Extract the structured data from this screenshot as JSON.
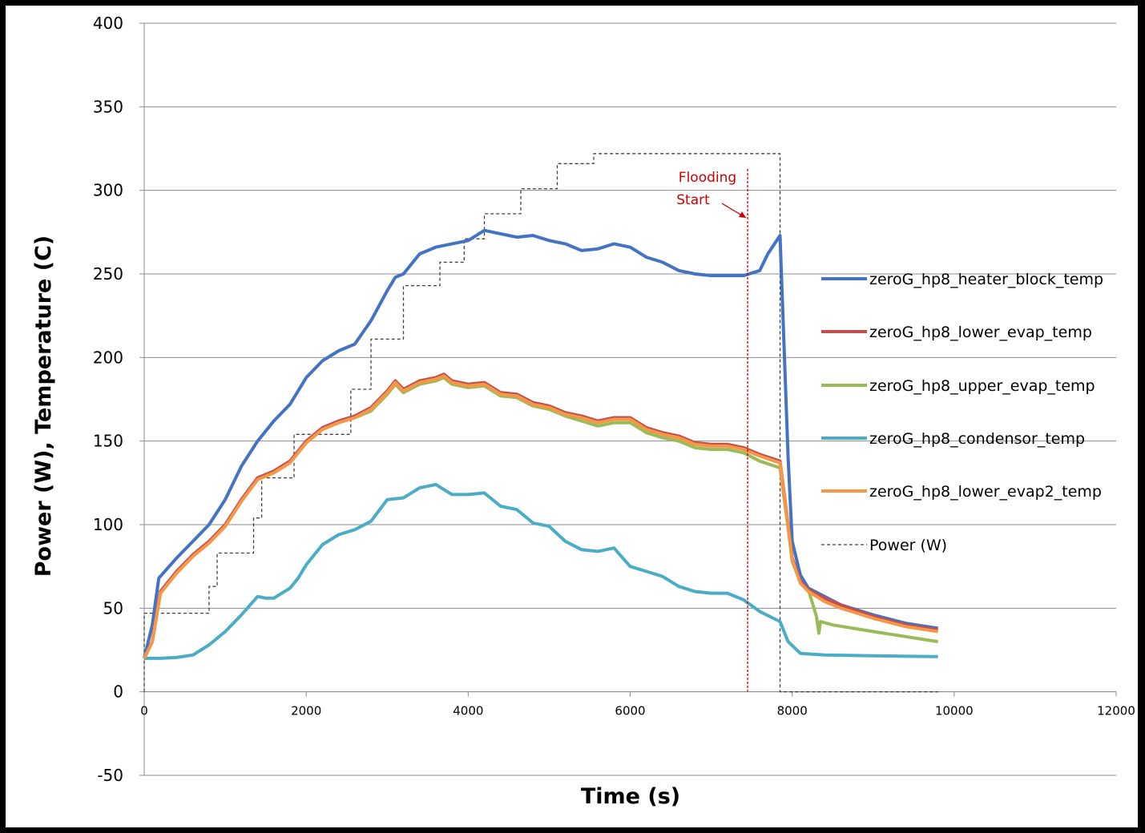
{
  "chart_data": {
    "type": "line",
    "title": "",
    "xlabel": "Time (s)",
    "ylabel": "Power (W),  Temperature (C)",
    "xlim": [
      0,
      12000
    ],
    "ylim": [
      -50,
      400
    ],
    "x_ticks": [
      "0",
      "2000",
      "4000",
      "6000",
      "8000",
      "10000",
      "12000"
    ],
    "y_ticks": [
      "-50",
      "0",
      "50",
      "100",
      "150",
      "200",
      "250",
      "300",
      "350",
      "400"
    ],
    "grid": "horizontal",
    "legend_position": "right",
    "annotation": {
      "lines": [
        "Flooding",
        "Start"
      ],
      "x": 7450,
      "color": "#cc0000"
    },
    "series": [
      {
        "name": "zeroG_hp8_heater_block_temp",
        "color": "#4472c4",
        "style": "solid",
        "points": [
          [
            0,
            20
          ],
          [
            100,
            40
          ],
          [
            180,
            68
          ],
          [
            400,
            80
          ],
          [
            600,
            90
          ],
          [
            800,
            100
          ],
          [
            1000,
            115
          ],
          [
            1200,
            135
          ],
          [
            1400,
            150
          ],
          [
            1600,
            162
          ],
          [
            1800,
            172
          ],
          [
            2000,
            188
          ],
          [
            2200,
            198
          ],
          [
            2400,
            204
          ],
          [
            2600,
            208
          ],
          [
            2800,
            222
          ],
          [
            3000,
            240
          ],
          [
            3100,
            248
          ],
          [
            3200,
            250
          ],
          [
            3400,
            262
          ],
          [
            3600,
            266
          ],
          [
            3800,
            268
          ],
          [
            4000,
            270
          ],
          [
            4200,
            276
          ],
          [
            4400,
            274
          ],
          [
            4600,
            272
          ],
          [
            4800,
            273
          ],
          [
            5000,
            270
          ],
          [
            5200,
            268
          ],
          [
            5400,
            264
          ],
          [
            5600,
            265
          ],
          [
            5800,
            268
          ],
          [
            6000,
            266
          ],
          [
            6200,
            260
          ],
          [
            6400,
            257
          ],
          [
            6600,
            252
          ],
          [
            6800,
            250
          ],
          [
            7000,
            249
          ],
          [
            7200,
            249
          ],
          [
            7400,
            249
          ],
          [
            7600,
            252
          ],
          [
            7700,
            262
          ],
          [
            7850,
            273
          ],
          [
            7950,
            140
          ],
          [
            8000,
            90
          ],
          [
            8100,
            70
          ],
          [
            8200,
            62
          ],
          [
            8400,
            57
          ],
          [
            8600,
            52
          ],
          [
            9000,
            46
          ],
          [
            9400,
            41
          ],
          [
            9800,
            38
          ]
        ]
      },
      {
        "name": "zeroG_hp8_lower_evap_temp",
        "color": "#c0504d",
        "style": "solid",
        "points": [
          [
            0,
            20
          ],
          [
            100,
            30
          ],
          [
            200,
            60
          ],
          [
            400,
            72
          ],
          [
            600,
            82
          ],
          [
            800,
            90
          ],
          [
            1000,
            100
          ],
          [
            1200,
            115
          ],
          [
            1400,
            128
          ],
          [
            1600,
            132
          ],
          [
            1800,
            138
          ],
          [
            2000,
            150
          ],
          [
            2200,
            158
          ],
          [
            2400,
            162
          ],
          [
            2600,
            165
          ],
          [
            2800,
            170
          ],
          [
            3000,
            180
          ],
          [
            3100,
            186
          ],
          [
            3200,
            181
          ],
          [
            3400,
            186
          ],
          [
            3600,
            188
          ],
          [
            3700,
            190
          ],
          [
            3800,
            186
          ],
          [
            4000,
            184
          ],
          [
            4200,
            185
          ],
          [
            4400,
            179
          ],
          [
            4600,
            178
          ],
          [
            4800,
            173
          ],
          [
            5000,
            171
          ],
          [
            5200,
            167
          ],
          [
            5400,
            165
          ],
          [
            5600,
            162
          ],
          [
            5800,
            164
          ],
          [
            6000,
            164
          ],
          [
            6200,
            158
          ],
          [
            6400,
            155
          ],
          [
            6600,
            153
          ],
          [
            6800,
            149
          ],
          [
            7000,
            148
          ],
          [
            7200,
            148
          ],
          [
            7400,
            146
          ],
          [
            7600,
            142
          ],
          [
            7850,
            138
          ],
          [
            7950,
            100
          ],
          [
            8000,
            80
          ],
          [
            8100,
            66
          ],
          [
            8200,
            61
          ],
          [
            8400,
            56
          ],
          [
            8600,
            52
          ],
          [
            9000,
            45
          ],
          [
            9400,
            40
          ],
          [
            9800,
            37
          ]
        ]
      },
      {
        "name": "zeroG_hp8_upper_evap_temp",
        "color": "#9bbb59",
        "style": "solid",
        "points": [
          [
            0,
            20
          ],
          [
            100,
            30
          ],
          [
            200,
            59
          ],
          [
            400,
            71
          ],
          [
            600,
            81
          ],
          [
            800,
            89
          ],
          [
            1000,
            99
          ],
          [
            1200,
            114
          ],
          [
            1400,
            127
          ],
          [
            1600,
            131
          ],
          [
            1800,
            137
          ],
          [
            2000,
            149
          ],
          [
            2200,
            157
          ],
          [
            2400,
            161
          ],
          [
            2600,
            164
          ],
          [
            2800,
            168
          ],
          [
            3000,
            178
          ],
          [
            3100,
            184
          ],
          [
            3200,
            179
          ],
          [
            3400,
            184
          ],
          [
            3600,
            186
          ],
          [
            3700,
            188
          ],
          [
            3800,
            184
          ],
          [
            4000,
            182
          ],
          [
            4200,
            183
          ],
          [
            4400,
            177
          ],
          [
            4600,
            176
          ],
          [
            4800,
            171
          ],
          [
            5000,
            169
          ],
          [
            5200,
            165
          ],
          [
            5400,
            162
          ],
          [
            5600,
            159
          ],
          [
            5800,
            161
          ],
          [
            6000,
            161
          ],
          [
            6200,
            155
          ],
          [
            6400,
            152
          ],
          [
            6600,
            150
          ],
          [
            6800,
            146
          ],
          [
            7000,
            145
          ],
          [
            7200,
            145
          ],
          [
            7400,
            143
          ],
          [
            7600,
            138
          ],
          [
            7850,
            134
          ],
          [
            7950,
            98
          ],
          [
            8000,
            78
          ],
          [
            8100,
            66
          ],
          [
            8200,
            61
          ],
          [
            8300,
            45
          ],
          [
            8330,
            35
          ],
          [
            8350,
            42
          ],
          [
            8500,
            40
          ],
          [
            9000,
            36
          ],
          [
            9400,
            33
          ],
          [
            9800,
            30
          ]
        ]
      },
      {
        "name": "zeroG_hp8_condensor_temp",
        "color": "#4bacc6",
        "style": "solid",
        "points": [
          [
            0,
            20
          ],
          [
            200,
            20
          ],
          [
            400,
            20.5
          ],
          [
            600,
            22
          ],
          [
            800,
            28
          ],
          [
            1000,
            36
          ],
          [
            1200,
            46
          ],
          [
            1400,
            57
          ],
          [
            1500,
            56
          ],
          [
            1600,
            56
          ],
          [
            1800,
            62
          ],
          [
            1900,
            68
          ],
          [
            2000,
            76
          ],
          [
            2200,
            88
          ],
          [
            2400,
            94
          ],
          [
            2600,
            97
          ],
          [
            2800,
            102
          ],
          [
            3000,
            115
          ],
          [
            3200,
            116
          ],
          [
            3400,
            122
          ],
          [
            3600,
            124
          ],
          [
            3800,
            118
          ],
          [
            4000,
            118
          ],
          [
            4200,
            119
          ],
          [
            4400,
            111
          ],
          [
            4600,
            109
          ],
          [
            4800,
            101
          ],
          [
            5000,
            99
          ],
          [
            5200,
            90
          ],
          [
            5400,
            85
          ],
          [
            5600,
            84
          ],
          [
            5800,
            86
          ],
          [
            6000,
            75
          ],
          [
            6200,
            72
          ],
          [
            6400,
            69
          ],
          [
            6600,
            63
          ],
          [
            6800,
            60
          ],
          [
            7000,
            59
          ],
          [
            7200,
            59
          ],
          [
            7400,
            55
          ],
          [
            7600,
            48
          ],
          [
            7850,
            42
          ],
          [
            7950,
            30
          ],
          [
            8100,
            23
          ],
          [
            8400,
            22
          ],
          [
            9000,
            21.5
          ],
          [
            9800,
            21
          ]
        ]
      },
      {
        "name": "zeroG_hp8_lower_evap2_temp",
        "color": "#f79646",
        "style": "solid",
        "points": [
          [
            0,
            20
          ],
          [
            100,
            30
          ],
          [
            200,
            59
          ],
          [
            400,
            71
          ],
          [
            600,
            81
          ],
          [
            800,
            89
          ],
          [
            1000,
            99
          ],
          [
            1200,
            114
          ],
          [
            1400,
            127
          ],
          [
            1600,
            131
          ],
          [
            1800,
            137
          ],
          [
            2000,
            149
          ],
          [
            2200,
            157
          ],
          [
            2400,
            161
          ],
          [
            2600,
            164
          ],
          [
            2800,
            169
          ],
          [
            3000,
            179
          ],
          [
            3100,
            185
          ],
          [
            3200,
            180
          ],
          [
            3400,
            185
          ],
          [
            3600,
            187
          ],
          [
            3700,
            189
          ],
          [
            3800,
            185
          ],
          [
            4000,
            183
          ],
          [
            4200,
            184
          ],
          [
            4400,
            178
          ],
          [
            4600,
            177
          ],
          [
            4800,
            172
          ],
          [
            5000,
            170
          ],
          [
            5200,
            166
          ],
          [
            5400,
            164
          ],
          [
            5600,
            161
          ],
          [
            5800,
            163
          ],
          [
            6000,
            163
          ],
          [
            6200,
            157
          ],
          [
            6400,
            154
          ],
          [
            6600,
            152
          ],
          [
            6800,
            148
          ],
          [
            7000,
            147
          ],
          [
            7200,
            147
          ],
          [
            7400,
            145
          ],
          [
            7600,
            141
          ],
          [
            7850,
            137
          ],
          [
            7950,
            99
          ],
          [
            8000,
            79
          ],
          [
            8100,
            65
          ],
          [
            8200,
            60
          ],
          [
            8400,
            54
          ],
          [
            8600,
            50
          ],
          [
            9000,
            44
          ],
          [
            9400,
            39
          ],
          [
            9800,
            36
          ]
        ]
      },
      {
        "name": "Power (W)",
        "color": "#404040",
        "style": "dashed",
        "points": [
          [
            0,
            0
          ],
          [
            0,
            47
          ],
          [
            800,
            47
          ],
          [
            800,
            63
          ],
          [
            900,
            63
          ],
          [
            900,
            83
          ],
          [
            1350,
            83
          ],
          [
            1350,
            104
          ],
          [
            1450,
            104
          ],
          [
            1450,
            128
          ],
          [
            1850,
            128
          ],
          [
            1850,
            154
          ],
          [
            2550,
            154
          ],
          [
            2550,
            181
          ],
          [
            2800,
            181
          ],
          [
            2800,
            211
          ],
          [
            3200,
            211
          ],
          [
            3200,
            243
          ],
          [
            3650,
            243
          ],
          [
            3650,
            257
          ],
          [
            3950,
            257
          ],
          [
            3950,
            271
          ],
          [
            4200,
            271
          ],
          [
            4200,
            286
          ],
          [
            4650,
            286
          ],
          [
            4650,
            301
          ],
          [
            5100,
            301
          ],
          [
            5100,
            316
          ],
          [
            5550,
            316
          ],
          [
            5550,
            322
          ],
          [
            7850,
            322
          ],
          [
            7850,
            0
          ],
          [
            9800,
            0
          ]
        ]
      }
    ]
  }
}
